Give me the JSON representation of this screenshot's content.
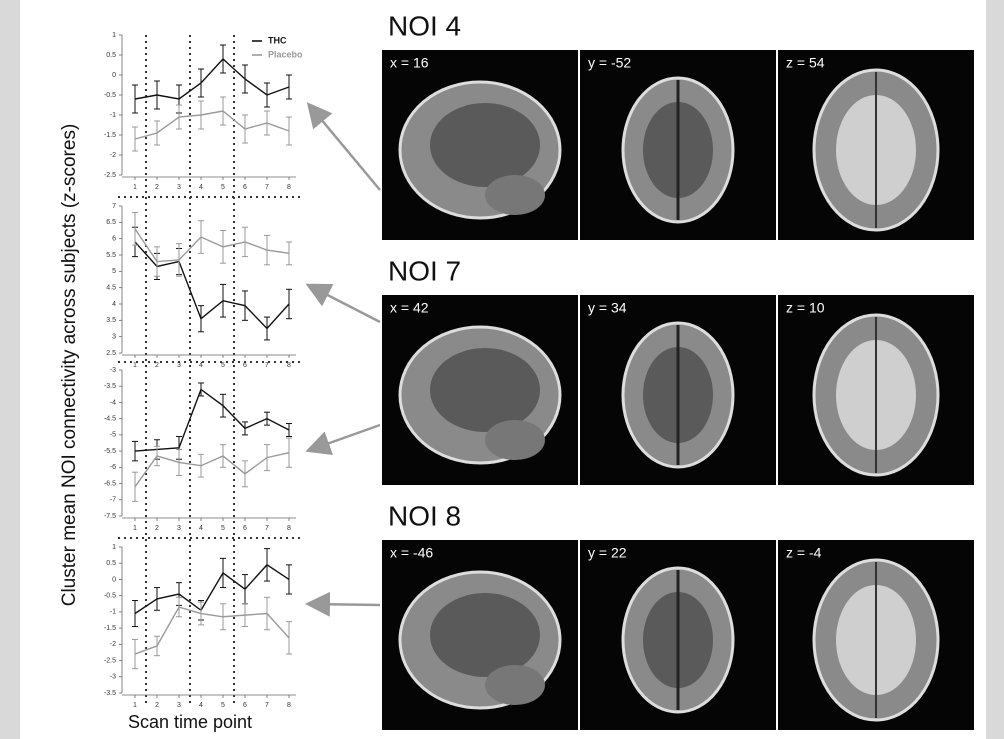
{
  "chart_data": [
    {
      "type": "line",
      "x": [
        1,
        2,
        3,
        4,
        5,
        6,
        7,
        8
      ],
      "xlim": [
        0.5,
        8.5
      ],
      "xticks": [
        1,
        2,
        3,
        4,
        5,
        6,
        7,
        8
      ],
      "ylim": [
        -2.5,
        1
      ],
      "yticks": [
        -2.5,
        -2,
        -1.5,
        -1,
        -0.5,
        0,
        0.5,
        1
      ],
      "vlines": [
        1.5,
        3.5,
        5.5
      ],
      "series": [
        {
          "name": "THC",
          "color": "#111111",
          "values": [
            -0.6,
            -0.5,
            -0.6,
            -0.2,
            0.4,
            -0.1,
            -0.5,
            -0.3
          ],
          "errors": [
            0.35,
            0.35,
            0.35,
            0.35,
            0.35,
            0.35,
            0.3,
            0.3
          ]
        },
        {
          "name": "Placebo",
          "color": "#999999",
          "values": [
            -1.6,
            -1.45,
            -1.05,
            -1.0,
            -0.9,
            -1.35,
            -1.2,
            -1.4
          ],
          "errors": [
            0.3,
            0.3,
            0.3,
            0.35,
            0.35,
            0.35,
            0.3,
            0.35
          ]
        }
      ]
    },
    {
      "type": "line",
      "x": [
        1,
        2,
        3,
        4,
        5,
        6,
        7,
        8
      ],
      "xlim": [
        0.5,
        8.5
      ],
      "xticks": [
        1,
        2,
        3,
        4,
        5,
        6,
        7,
        8
      ],
      "ylim": [
        2.5,
        7
      ],
      "yticks": [
        2.5,
        3,
        3.5,
        4,
        4.5,
        5,
        5.5,
        6,
        6.5,
        7
      ],
      "series": [
        {
          "color": "#111111",
          "values": [
            5.9,
            5.15,
            5.3,
            3.55,
            4.1,
            3.95,
            3.25,
            4.0
          ],
          "errors": [
            0.45,
            0.4,
            0.4,
            0.4,
            0.5,
            0.45,
            0.35,
            0.45
          ]
        },
        {
          "color": "#999999",
          "values": [
            6.3,
            5.3,
            5.35,
            6.05,
            5.75,
            5.9,
            5.65,
            5.55
          ],
          "errors": [
            0.5,
            0.45,
            0.5,
            0.5,
            0.5,
            0.45,
            0.45,
            0.35
          ]
        }
      ]
    },
    {
      "type": "line",
      "x": [
        1,
        2,
        3,
        4,
        5,
        6,
        7,
        8
      ],
      "xlim": [
        0.5,
        8.5
      ],
      "xticks": [
        1,
        2,
        3,
        4,
        5,
        6,
        7,
        8
      ],
      "ylim": [
        -7.5,
        -3
      ],
      "yticks": [
        -7.5,
        -7,
        -6.5,
        -6,
        -5.5,
        -5,
        -4.5,
        -4,
        -3.5,
        -3
      ],
      "series": [
        {
          "color": "#111111",
          "values": [
            -5.5,
            -5.45,
            -5.4,
            -3.6,
            -4.1,
            -4.8,
            -4.5,
            -4.85
          ],
          "errors": [
            0.3,
            0.3,
            0.35,
            0.2,
            0.35,
            0.2,
            0.2,
            0.2
          ]
        },
        {
          "color": "#999999",
          "values": [
            -6.6,
            -5.65,
            -5.85,
            -5.95,
            -5.65,
            -6.2,
            -5.7,
            -5.55
          ],
          "errors": [
            0.45,
            0.3,
            0.4,
            0.35,
            0.35,
            0.4,
            0.4,
            0.45
          ]
        }
      ]
    },
    {
      "type": "line",
      "x": [
        1,
        2,
        3,
        4,
        5,
        6,
        7,
        8
      ],
      "xlim": [
        0.5,
        8.5
      ],
      "xticks": [
        1,
        2,
        3,
        4,
        5,
        6,
        7,
        8
      ],
      "ylim": [
        -3.5,
        1
      ],
      "yticks": [
        -3.5,
        -3,
        -2.5,
        -2,
        -1.5,
        -1,
        -0.5,
        0,
        0.5,
        1
      ],
      "series": [
        {
          "color": "#111111",
          "values": [
            -1.05,
            -0.6,
            -0.45,
            -0.95,
            0.2,
            -0.3,
            0.45,
            0.0
          ],
          "errors": [
            0.4,
            0.35,
            0.35,
            0.3,
            0.45,
            0.45,
            0.5,
            0.45
          ]
        },
        {
          "color": "#999999",
          "values": [
            -2.3,
            -2.05,
            -0.85,
            -1.05,
            -1.15,
            -1.1,
            -1.05,
            -1.8
          ],
          "errors": [
            0.45,
            0.3,
            0.3,
            0.35,
            0.4,
            0.35,
            0.5,
            0.5
          ]
        }
      ]
    }
  ],
  "y_label": "Cluster mean NOI connectivity across subjects (z-scores)",
  "x_label": "Scan time point",
  "panels": [
    {
      "title": "NOI 4",
      "views": [
        "x = 16",
        "y = -52",
        "z = 54"
      ]
    },
    {
      "title": "NOI 7",
      "views": [
        "x = 42",
        "y = 34",
        "z = 10"
      ]
    },
    {
      "title": "NOI 8",
      "views": [
        "x = -46",
        "y = 22",
        "z = -4"
      ]
    }
  ]
}
